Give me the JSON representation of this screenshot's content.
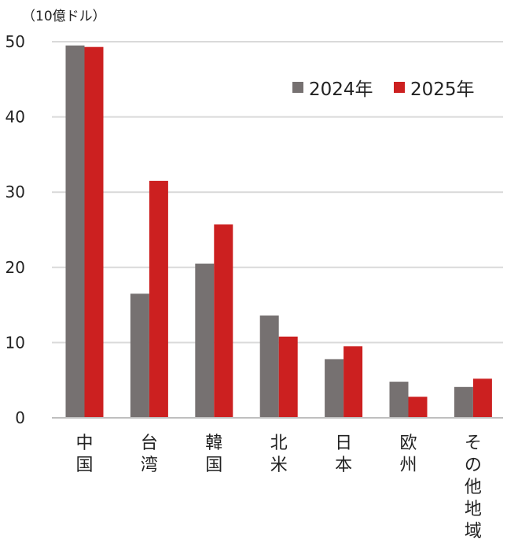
{
  "chart_data": {
    "type": "bar",
    "unit_label": "（10億ドル）",
    "categories": [
      "中国",
      "台湾",
      "韓国",
      "北米",
      "日本",
      "欧州",
      "その他地域"
    ],
    "series": [
      {
        "name": "2024年",
        "color": "#767171",
        "values": [
          49.5,
          16.5,
          20.5,
          13.6,
          7.8,
          4.8,
          4.1
        ]
      },
      {
        "name": "2025年",
        "color": "#cc2020",
        "values": [
          49.3,
          31.5,
          25.7,
          10.8,
          9.5,
          2.8,
          5.2
        ]
      }
    ],
    "ylim": [
      0,
      50
    ],
    "yticks": [
      0,
      10,
      20,
      30,
      40,
      50
    ],
    "grid": true,
    "legend_position": "top-right"
  }
}
